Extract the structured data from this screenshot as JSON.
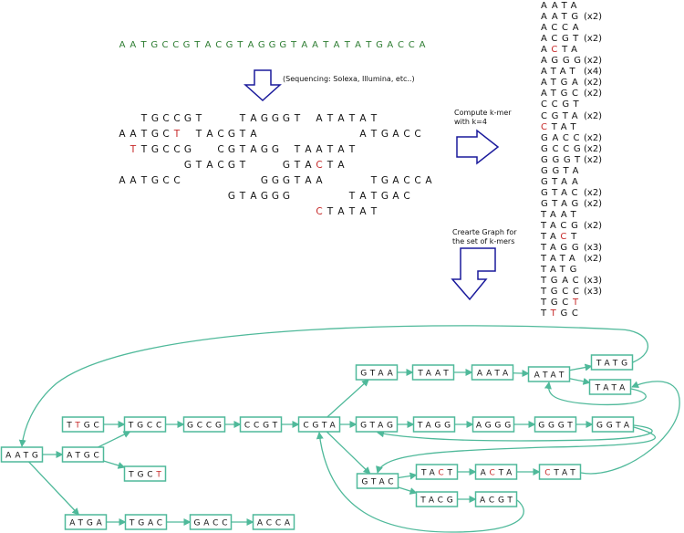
{
  "genome": "AATGCCGTACGTAGGGTAATATATGACCA",
  "genome_color": "#2e7d32",
  "sequencing_note": "(Sequencing: Solexa, Illumina, etc..)",
  "reads": [
    "  TGCCGT   TAGGGT ATATAT",
    "AATGCT TACGTA         ATGACC",
    " TTGCCG  CGTAGG TAATAT",
    "      GTACGT   GTACTA",
    "AATGCC       GGGTAA    TGACCA",
    "          GTAGGG     TATGAC",
    "                  CTATAT"
  ],
  "read_errors": [
    {
      "row": 1,
      "col": 5
    },
    {
      "row": 2,
      "col": 1
    },
    {
      "row": 3,
      "col": 18
    },
    {
      "row": 6,
      "col": 18
    }
  ],
  "kmer_note": [
    "Compute k-mer",
    "with k=4"
  ],
  "graph_note": [
    "Crearte Graph for",
    "the set of k-mers"
  ],
  "kmers": [
    {
      "s": "AATA",
      "c": ""
    },
    {
      "s": "AATG",
      "c": "(x2)"
    },
    {
      "s": "ACCA",
      "c": ""
    },
    {
      "s": "ACGT",
      "c": "(x2)"
    },
    {
      "s": "ACTA",
      "c": "",
      "r": 1
    },
    {
      "s": "AGGG",
      "c": "(x2)"
    },
    {
      "s": "ATAT",
      "c": "(x4)"
    },
    {
      "s": "ATGA",
      "c": "(x2)"
    },
    {
      "s": "ATGC",
      "c": "(x2)"
    },
    {
      "s": "CCGT",
      "c": ""
    },
    {
      "s": "CGTA",
      "c": "(x2)"
    },
    {
      "s": "CTAT",
      "c": "",
      "r": 0
    },
    {
      "s": "GACC",
      "c": "(x2)"
    },
    {
      "s": "GCCG",
      "c": "(x2)"
    },
    {
      "s": "GGGT",
      "c": "(x2)"
    },
    {
      "s": "GGTA",
      "c": ""
    },
    {
      "s": "GTAA",
      "c": ""
    },
    {
      "s": "GTAC",
      "c": "(x2)"
    },
    {
      "s": "GTAG",
      "c": "(x2)"
    },
    {
      "s": "TAAT",
      "c": ""
    },
    {
      "s": "TACG",
      "c": "(x2)"
    },
    {
      "s": "TACT",
      "c": "",
      "r": 2
    },
    {
      "s": "TAGG",
      "c": "(x3)"
    },
    {
      "s": "TATA",
      "c": "(x2)"
    },
    {
      "s": "TATG",
      "c": ""
    },
    {
      "s": "TGAC",
      "c": "(x3)"
    },
    {
      "s": "TGCC",
      "c": "(x3)"
    },
    {
      "s": "TGCT",
      "c": "",
      "r": 3
    },
    {
      "s": "TTGC",
      "c": "",
      "r": 1
    }
  ],
  "graph": {
    "edge_color": "#4fb99a",
    "error_color": "#c62828",
    "nodes": [
      {
        "id": "AATG"
      },
      {
        "id": "TTGC",
        "r": 1
      },
      {
        "id": "ATGC"
      },
      {
        "id": "TGCC"
      },
      {
        "id": "TGCT",
        "r": 3
      },
      {
        "id": "GCCG"
      },
      {
        "id": "CCGT"
      },
      {
        "id": "CGTA"
      },
      {
        "id": "GTAA"
      },
      {
        "id": "TAAT"
      },
      {
        "id": "AATA"
      },
      {
        "id": "ATAT"
      },
      {
        "id": "TATG"
      },
      {
        "id": "TATA"
      },
      {
        "id": "GTAG"
      },
      {
        "id": "TAGG"
      },
      {
        "id": "AGGG"
      },
      {
        "id": "GGGT"
      },
      {
        "id": "GGTA"
      },
      {
        "id": "GTAC"
      },
      {
        "id": "TACT",
        "r": 2
      },
      {
        "id": "ACTA",
        "r": 1
      },
      {
        "id": "CTAT",
        "r": 0
      },
      {
        "id": "TACG"
      },
      {
        "id": "ACGT"
      },
      {
        "id": "ATGA"
      },
      {
        "id": "TGAC"
      },
      {
        "id": "GACC"
      },
      {
        "id": "ACCA"
      }
    ],
    "edges": [
      [
        "AATG",
        "ATGC"
      ],
      [
        "AATG",
        "ATGA"
      ],
      [
        "TTGC",
        "TGCC"
      ],
      [
        "ATGC",
        "TGCC"
      ],
      [
        "ATGC",
        "TGCT"
      ],
      [
        "TGCC",
        "GCCG"
      ],
      [
        "GCCG",
        "CCGT"
      ],
      [
        "CCGT",
        "CGTA"
      ],
      [
        "CGTA",
        "GTAA"
      ],
      [
        "CGTA",
        "GTAG"
      ],
      [
        "CGTA",
        "GTAC"
      ],
      [
        "GTAA",
        "TAAT"
      ],
      [
        "TAAT",
        "AATA"
      ],
      [
        "AATA",
        "ATAT"
      ],
      [
        "ATAT",
        "TATG"
      ],
      [
        "ATAT",
        "TATA"
      ],
      [
        "TATA",
        "ATAT"
      ],
      [
        "TATG",
        "AATG"
      ],
      [
        "GTAG",
        "TAGG"
      ],
      [
        "TAGG",
        "AGGG"
      ],
      [
        "AGGG",
        "GGGT"
      ],
      [
        "GGGT",
        "GGTA"
      ],
      [
        "GGTA",
        "GTAG"
      ],
      [
        "GGTA",
        "GTAC"
      ],
      [
        "GTAC",
        "TACT"
      ],
      [
        "TACT",
        "ACTA"
      ],
      [
        "ACTA",
        "CTAT"
      ],
      [
        "CTAT",
        "TATA"
      ],
      [
        "GTAC",
        "TACG"
      ],
      [
        "TACG",
        "ACGT"
      ],
      [
        "ACGT",
        "CGTA"
      ],
      [
        "ATGA",
        "TGAC"
      ],
      [
        "TGAC",
        "GACC"
      ],
      [
        "GACC",
        "ACCA"
      ]
    ]
  }
}
